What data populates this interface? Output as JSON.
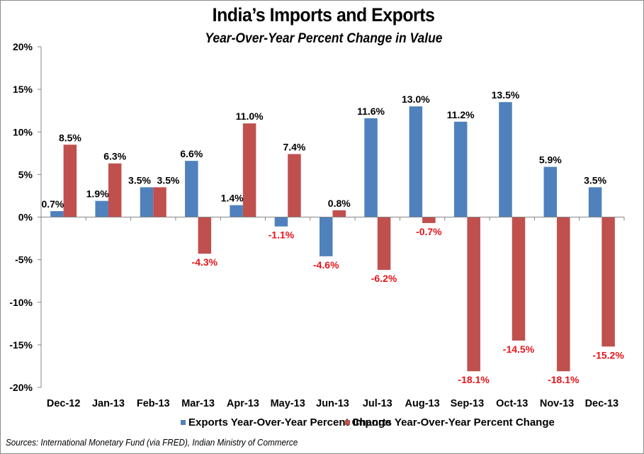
{
  "chart_data": {
    "type": "bar",
    "title": "India’s Imports and Exports",
    "subtitle": "Year-Over-Year Percent Change in Value",
    "xlabel": "",
    "ylabel": "",
    "ylim": [
      -20,
      20
    ],
    "yticks": [
      20,
      15,
      10,
      5,
      0,
      -5,
      -10,
      -15,
      -20
    ],
    "ytick_labels": [
      "20%",
      "15%",
      "10%",
      "5%",
      "0%",
      "-5%",
      "-10%",
      "-15%",
      "-20%"
    ],
    "grid": false,
    "categories": [
      "Dec-12",
      "Jan-13",
      "Feb-13",
      "Mar-13",
      "Apr-13",
      "May-13",
      "Jun-13",
      "Jul-13",
      "Aug-13",
      "Sep-13",
      "Oct-13",
      "Nov-13",
      "Dec-13"
    ],
    "series": [
      {
        "name": "Exports Year-Over-Year Percent Change",
        "color": "#4F81BD",
        "values": [
          0.7,
          1.9,
          3.5,
          6.6,
          1.4,
          -1.1,
          -4.6,
          11.6,
          13.0,
          11.2,
          13.5,
          5.9,
          3.5
        ],
        "labels": [
          "0.7%",
          "1.9%",
          "3.5%",
          "6.6%",
          "1.4%",
          "",
          "",
          "11.6%",
          "13.0%",
          "11.2%",
          "13.5%",
          "5.9%",
          "3.5%"
        ]
      },
      {
        "name": "Imports Year-Over-Year Percent Change",
        "color": "#C0504D",
        "values": [
          8.5,
          6.3,
          3.5,
          -4.3,
          11.0,
          7.4,
          0.8,
          -6.2,
          -0.7,
          -18.1,
          -14.5,
          -18.1,
          -15.2
        ],
        "labels": [
          "8.5%",
          "6.3%",
          "3.5%",
          "-4.3%",
          "11.0%",
          "7.4%",
          "0.8%",
          "-6.2%",
          "-0.7%",
          "-18.1%",
          "-14.5%",
          "-18.1%",
          "-15.2%"
        ]
      }
    ],
    "extra_labels": [
      {
        "series": 0,
        "index": 5,
        "text": "-1.1%"
      },
      {
        "series": 0,
        "index": 6,
        "text": "-4.6%"
      }
    ],
    "label_colors": {
      "positive": "#000000",
      "negative": "#E3161B"
    },
    "legend_position": "bottom"
  },
  "legend": {
    "exports_label": "Exports Year-Over-Year Percent Change",
    "imports_label": "Imports Year-Over-Year Percent Change",
    "exports_color": "#4F81BD",
    "imports_color": "#C0504D"
  },
  "source": "Sources: International Monetary Fund (via FRED), Indian Ministry of Commerce"
}
